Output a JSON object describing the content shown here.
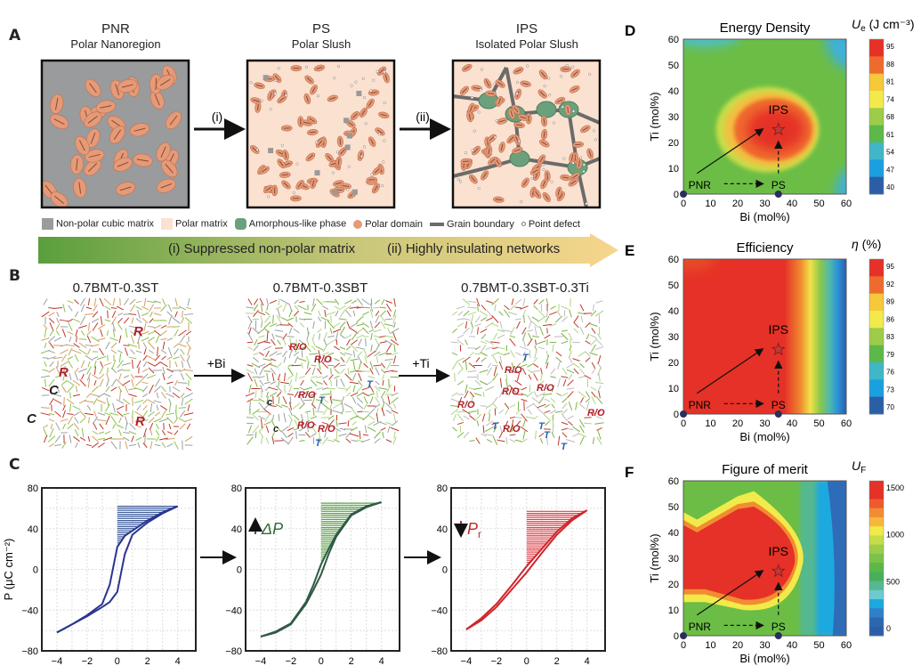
{
  "panel_a": {
    "label": "A",
    "states": [
      {
        "abbr": "PNR",
        "name": "Polar Nanoregion"
      },
      {
        "abbr": "PS",
        "name": "Polar Slush"
      },
      {
        "abbr": "IPS",
        "name": "Isolated Polar Slush"
      }
    ],
    "transitions": [
      "(i)",
      "(ii)"
    ],
    "legend": [
      {
        "label": "Non-polar cubic matrix",
        "color": "#9a9b9d"
      },
      {
        "label": "Polar matrix",
        "color": "#fbe1cf"
      },
      {
        "label": "Amorphous-like phase",
        "color": "#6aa17c"
      },
      {
        "label": "Polar domain",
        "color": "#e59a78"
      },
      {
        "label": "Grain boundary",
        "color": "#6b6b6b"
      },
      {
        "label": "Point defect",
        "color": "#ffffff"
      }
    ],
    "banner": [
      "(i) Suppressed non-polar matrix",
      "(ii) Highly insulating networks"
    ]
  },
  "panel_b": {
    "label": "B",
    "titles": [
      "0.7BMT-0.3ST",
      "0.7BMT-0.3SBT",
      "0.7BMT-0.3SBT-0.3Ti"
    ],
    "arrows": [
      "+Bi",
      "+Ti"
    ],
    "annotations": [
      [
        "R",
        "R",
        "C",
        "C",
        "R"
      ],
      [
        "R/O",
        "R/O",
        "T",
        "T",
        "c",
        "c",
        "R/O",
        "R/O",
        "R/O",
        "T"
      ],
      [
        "T",
        "R/O",
        "R/O",
        "R/O",
        "T",
        "R/O",
        "R/O",
        "T",
        "R/O",
        "T",
        "T"
      ]
    ]
  },
  "panel_c": {
    "label": "C"
  },
  "chart_data": [
    {
      "type": "line",
      "panel": "C-1",
      "xlabel": "E (MV cm⁻¹)",
      "ylabel": "P (μC cm⁻²)",
      "xlim": [
        -5,
        5.2
      ],
      "ylim": [
        -80,
        80
      ],
      "xticks": [
        "-4",
        "-2",
        "0",
        "2",
        "4"
      ],
      "yticks": [
        "80",
        "40",
        "0",
        "-40",
        "-80"
      ],
      "grid": true,
      "color": "#2a3590",
      "hatch_color": "#3b5a9a",
      "annotation": "",
      "x": [
        -4,
        -3,
        -2,
        -1,
        -0.5,
        0,
        0.5,
        1,
        2,
        3,
        4
      ],
      "series": [
        {
          "values": [
            -62,
            -54,
            -45,
            -34,
            -15,
            22,
            33,
            38,
            48,
            56,
            62
          ]
        },
        {
          "values": [
            -62,
            -54,
            -46,
            -37,
            -32,
            -22,
            15,
            34,
            46,
            55,
            62
          ]
        }
      ]
    },
    {
      "type": "line",
      "panel": "C-2",
      "xlabel": "E (MV cm⁻¹)",
      "ylabel": "",
      "xlim": [
        -5,
        5.2
      ],
      "ylim": [
        -80,
        80
      ],
      "xticks": [
        "-4",
        "-2",
        "0",
        "2",
        "4"
      ],
      "yticks": [
        "80",
        "40",
        "0",
        "-40",
        "-80"
      ],
      "grid": true,
      "color": "#2f5a45",
      "hatch_color": "#5aa04a",
      "annotation": "ΔP",
      "annotation_color": "#2f6b3a",
      "x": [
        -4,
        -3,
        -2,
        -1,
        -0.5,
        0,
        0.5,
        1,
        2,
        3,
        4
      ],
      "series": [
        {
          "values": [
            -66,
            -61,
            -53,
            -32,
            -15,
            5,
            20,
            34,
            54,
            62,
            66
          ]
        },
        {
          "values": [
            -66,
            -62,
            -54,
            -34,
            -20,
            -5,
            15,
            32,
            53,
            61,
            66
          ]
        }
      ]
    },
    {
      "type": "line",
      "panel": "C-3",
      "xlabel": "E (MV cm⁻¹)",
      "ylabel": "",
      "xlim": [
        -5,
        5.2
      ],
      "ylim": [
        -80,
        80
      ],
      "xticks": [
        "-4",
        "-2",
        "0",
        "2",
        "4"
      ],
      "yticks": [
        "80",
        "40",
        "0",
        "-40",
        "-80"
      ],
      "grid": true,
      "color": "#d0252b",
      "hatch_color": "#e0404a",
      "annotation": "Pr",
      "annotation_color": "#c0282b",
      "x": [
        -4,
        -3,
        -2,
        -1,
        0,
        1,
        2,
        3,
        4
      ],
      "series": [
        {
          "values": [
            -59,
            -48,
            -34,
            -16,
            3,
            20,
            37,
            50,
            58
          ]
        },
        {
          "values": [
            -59,
            -50,
            -37,
            -20,
            -3,
            16,
            34,
            48,
            58
          ]
        }
      ]
    },
    {
      "type": "heatmap",
      "panel": "D",
      "label": "D",
      "title": "Energy Density",
      "colorbar_title": {
        "symbol": "U",
        "sub": "e",
        "unit": " (J cm⁻³)"
      },
      "colorbar_ticks": [
        "95",
        "88",
        "81",
        "74",
        "68",
        "61",
        "54",
        "47",
        "40"
      ],
      "xlabel": "Bi (mol%)",
      "ylabel": "Ti (mol%)",
      "xlim": [
        0,
        60
      ],
      "ylim": [
        0,
        60
      ],
      "xticks": [
        "0",
        "10",
        "20",
        "30",
        "40",
        "50",
        "60"
      ],
      "yticks": [
        "60",
        "50",
        "40",
        "30",
        "20",
        "10",
        "0"
      ],
      "points": [
        {
          "label": "PNR",
          "x": 0,
          "y": 0
        },
        {
          "label": "PS",
          "x": 35,
          "y": 0
        },
        {
          "label": "IPS",
          "x": 35,
          "y": 25
        }
      ]
    },
    {
      "type": "heatmap",
      "panel": "E",
      "label": "E",
      "title": "Efficiency",
      "colorbar_title": {
        "symbol": "η",
        "sub": "",
        "unit": " (%)"
      },
      "colorbar_ticks": [
        "95",
        "92",
        "89",
        "86",
        "83",
        "79",
        "76",
        "73",
        "70"
      ],
      "xlabel": "Bi (mol%)",
      "ylabel": "Ti (mol%)",
      "xlim": [
        0,
        60
      ],
      "ylim": [
        0,
        60
      ],
      "xticks": [
        "0",
        "10",
        "20",
        "30",
        "40",
        "50",
        "60"
      ],
      "yticks": [
        "60",
        "50",
        "40",
        "30",
        "20",
        "10",
        "0"
      ],
      "points": [
        {
          "label": "PNR",
          "x": 0,
          "y": 0
        },
        {
          "label": "PS",
          "x": 35,
          "y": 0
        },
        {
          "label": "IPS",
          "x": 35,
          "y": 25
        }
      ]
    },
    {
      "type": "heatmap",
      "panel": "F",
      "label": "F",
      "title": "Figure of merit",
      "colorbar_title": {
        "symbol": "U",
        "sub": "F",
        "unit": ""
      },
      "colorbar_ticks": [
        "1500",
        "1000",
        "500",
        "0"
      ],
      "xlabel": "Bi (mol%)",
      "ylabel": "Ti (mol%)",
      "xlim": [
        0,
        60
      ],
      "ylim": [
        0,
        60
      ],
      "xticks": [
        "0",
        "10",
        "20",
        "30",
        "40",
        "50",
        "60"
      ],
      "yticks": [
        "60",
        "50",
        "40",
        "30",
        "20",
        "10",
        "0"
      ],
      "points": [
        {
          "label": "PNR",
          "x": 0,
          "y": 0
        },
        {
          "label": "PS",
          "x": 35,
          "y": 0
        },
        {
          "label": "IPS",
          "x": 35,
          "y": 25
        }
      ]
    }
  ]
}
